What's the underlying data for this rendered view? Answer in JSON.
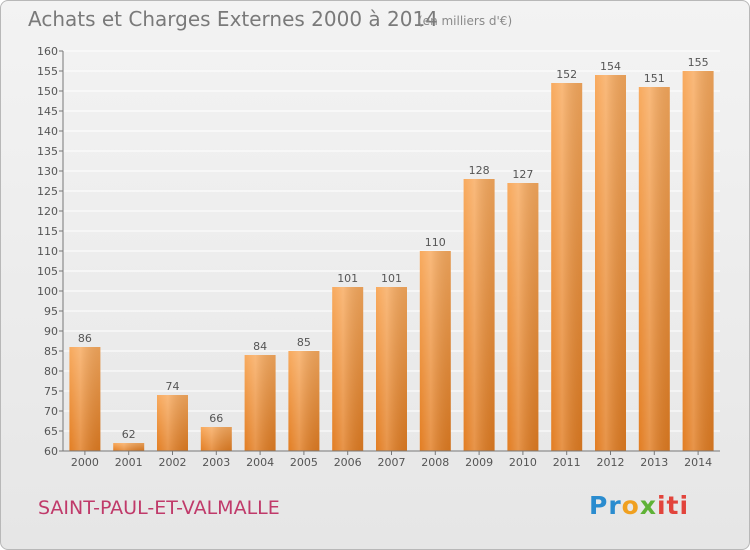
{
  "header": {
    "title": "Achats et Charges Externes 2000 à 2014",
    "unit": "(en milliers d'€)"
  },
  "footer": {
    "place": "SAINT-PAUL-ET-VALMALLE",
    "logo": {
      "p1": "Pr",
      "p2": "o",
      "p3": "x",
      "p4": "iti"
    }
  },
  "chart_data": {
    "type": "bar",
    "title": "Achats et Charges Externes 2000 à 2014",
    "subtitle": "(en milliers d'€)",
    "xlabel": "",
    "ylabel": "",
    "categories": [
      "2000",
      "2001",
      "2002",
      "2003",
      "2004",
      "2005",
      "2006",
      "2007",
      "2008",
      "2009",
      "2010",
      "2011",
      "2012",
      "2013",
      "2014"
    ],
    "values": [
      86,
      62,
      74,
      66,
      84,
      85,
      101,
      101,
      110,
      128,
      127,
      152,
      154,
      151,
      155
    ],
    "ylim": [
      60,
      160
    ],
    "yticks": [
      60,
      65,
      70,
      75,
      80,
      85,
      90,
      95,
      100,
      105,
      110,
      115,
      120,
      125,
      130,
      135,
      140,
      145,
      150,
      155,
      160
    ],
    "grid": true,
    "legend": "none",
    "colors": {
      "bar_light": "#f7a75a",
      "bar_dark": "#e07b20",
      "grid": "#ffffff",
      "axis": "#777777"
    }
  }
}
